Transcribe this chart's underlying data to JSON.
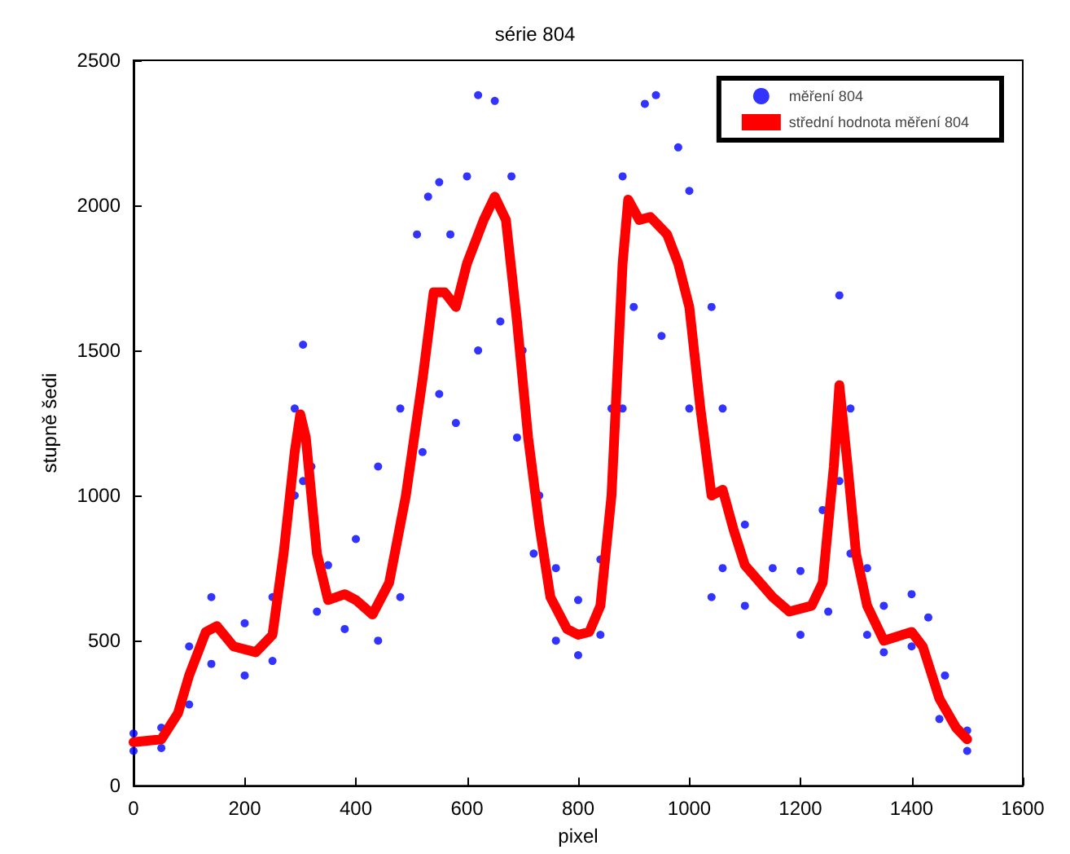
{
  "chart_data": {
    "type": "scatter",
    "title": "série 804",
    "xlabel": "pixel",
    "ylabel": "stupně šedi",
    "xlim": [
      0,
      1600
    ],
    "xticks": [
      0,
      200,
      400,
      600,
      800,
      1000,
      1200,
      1400,
      1600
    ],
    "ylim": [
      0,
      2500
    ],
    "yticks": [
      0,
      500,
      1000,
      1500,
      2000,
      2500
    ],
    "legend": "top right",
    "series": [
      {
        "name": "měření 804",
        "color": "#0000ff",
        "x": [
          0,
          50,
          100,
          140,
          200,
          250,
          290,
          305,
          320,
          350,
          400,
          440,
          480,
          510,
          530,
          550,
          570,
          600,
          620,
          650,
          680,
          700,
          730,
          760,
          800,
          840,
          860,
          880,
          920,
          940,
          980,
          1000,
          1040,
          1060,
          1100,
          1150,
          1200,
          1240,
          1270,
          1290,
          1320,
          1350,
          1400,
          1430,
          1460,
          1500,
          0,
          50,
          100,
          140,
          200,
          250,
          290,
          305,
          330,
          380,
          440,
          480,
          520,
          550,
          580,
          620,
          660,
          690,
          720,
          760,
          800,
          840,
          880,
          900,
          950,
          1000,
          1040,
          1060,
          1100,
          1200,
          1250,
          1270,
          1290,
          1320,
          1350,
          1400,
          1450,
          1500
        ],
        "values": [
          180,
          200,
          480,
          650,
          560,
          650,
          1300,
          1520,
          1100,
          760,
          850,
          1100,
          1300,
          1900,
          2030,
          2080,
          1900,
          2100,
          2380,
          2360,
          2100,
          1500,
          1000,
          750,
          640,
          780,
          1300,
          2100,
          2350,
          2380,
          2200,
          2050,
          1650,
          1300,
          900,
          750,
          740,
          950,
          1690,
          1300,
          750,
          620,
          660,
          580,
          380,
          190,
          120,
          130,
          280,
          420,
          380,
          430,
          1000,
          1050,
          600,
          540,
          500,
          650,
          1150,
          1350,
          1250,
          1500,
          1600,
          1200,
          800,
          500,
          450,
          520,
          1300,
          1650,
          1550,
          1300,
          650,
          750,
          620,
          520,
          600,
          1050,
          800,
          520,
          460,
          480,
          230,
          120
        ]
      },
      {
        "name": "střední hodnota měření 804",
        "type": "line",
        "color": "#ff0000",
        "x": [
          0,
          50,
          80,
          100,
          130,
          150,
          180,
          220,
          250,
          270,
          290,
          300,
          310,
          330,
          350,
          380,
          400,
          430,
          460,
          490,
          520,
          540,
          560,
          580,
          600,
          630,
          650,
          670,
          690,
          710,
          730,
          750,
          780,
          800,
          820,
          840,
          860,
          880,
          890,
          910,
          930,
          960,
          980,
          1000,
          1020,
          1040,
          1060,
          1080,
          1100,
          1150,
          1180,
          1220,
          1240,
          1260,
          1270,
          1285,
          1300,
          1320,
          1350,
          1400,
          1420,
          1450,
          1480,
          1500
        ],
        "values": [
          150,
          160,
          250,
          380,
          530,
          550,
          480,
          460,
          520,
          800,
          1150,
          1280,
          1200,
          800,
          640,
          660,
          640,
          590,
          700,
          1000,
          1400,
          1700,
          1700,
          1650,
          1800,
          1950,
          2030,
          1950,
          1600,
          1200,
          900,
          650,
          540,
          520,
          530,
          620,
          1000,
          1800,
          2020,
          1950,
          1960,
          1900,
          1800,
          1650,
          1300,
          1000,
          1020,
          880,
          760,
          650,
          600,
          620,
          700,
          1100,
          1380,
          1100,
          800,
          620,
          500,
          530,
          480,
          300,
          200,
          160
        ]
      }
    ]
  }
}
